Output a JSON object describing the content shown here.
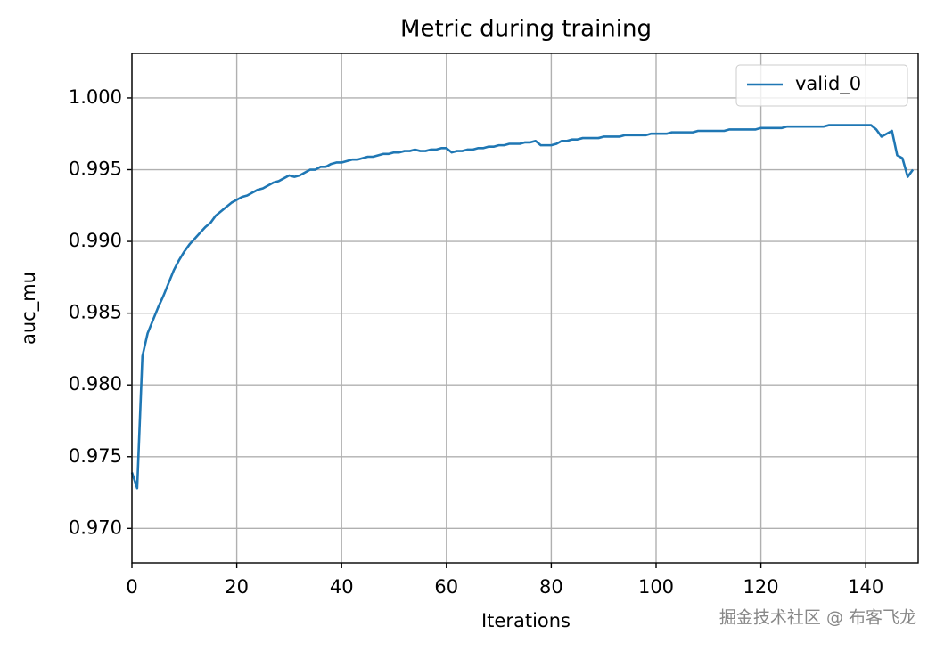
{
  "chart_data": {
    "type": "line",
    "title": "Metric during training",
    "xlabel": "Iterations",
    "ylabel": "auc_mu",
    "x": [
      0,
      1,
      2,
      3,
      4,
      5,
      6,
      7,
      8,
      9,
      10,
      11,
      12,
      13,
      14,
      15,
      16,
      17,
      18,
      19,
      20,
      21,
      22,
      23,
      24,
      25,
      26,
      27,
      28,
      29,
      30,
      31,
      32,
      33,
      34,
      35,
      36,
      37,
      38,
      39,
      40,
      41,
      42,
      43,
      44,
      45,
      46,
      47,
      48,
      49,
      50,
      51,
      52,
      53,
      54,
      55,
      56,
      57,
      58,
      59,
      60,
      61,
      62,
      63,
      64,
      65,
      66,
      67,
      68,
      69,
      70,
      71,
      72,
      73,
      74,
      75,
      76,
      77,
      78,
      79,
      80,
      81,
      82,
      83,
      84,
      85,
      86,
      87,
      88,
      89,
      90,
      91,
      92,
      93,
      94,
      95,
      96,
      97,
      98,
      99,
      100,
      101,
      102,
      103,
      104,
      105,
      106,
      107,
      108,
      109,
      110,
      111,
      112,
      113,
      114,
      115,
      116,
      117,
      118,
      119,
      120,
      121,
      122,
      123,
      124,
      125,
      126,
      127,
      128,
      129,
      130,
      131,
      132,
      133,
      134,
      135,
      136,
      137,
      138,
      139,
      140,
      141,
      142,
      143,
      144,
      145,
      146,
      147,
      148,
      149
    ],
    "series": [
      {
        "name": "valid_0",
        "color": "#1f77b4",
        "values": [
          0.9739,
          0.9728,
          0.982,
          0.9836,
          0.9845,
          0.9854,
          0.9862,
          0.9871,
          0.988,
          0.9887,
          0.9893,
          0.9898,
          0.9902,
          0.9906,
          0.991,
          0.9913,
          0.9918,
          0.9921,
          0.9924,
          0.9927,
          0.9929,
          0.9931,
          0.9932,
          0.9934,
          0.9936,
          0.9937,
          0.9939,
          0.9941,
          0.9942,
          0.9944,
          0.9946,
          0.9945,
          0.9946,
          0.9948,
          0.995,
          0.995,
          0.9952,
          0.9952,
          0.9954,
          0.9955,
          0.9955,
          0.9956,
          0.9957,
          0.9957,
          0.9958,
          0.9959,
          0.9959,
          0.996,
          0.9961,
          0.9961,
          0.9962,
          0.9962,
          0.9963,
          0.9963,
          0.9964,
          0.9963,
          0.9963,
          0.9964,
          0.9964,
          0.9965,
          0.9965,
          0.9962,
          0.9963,
          0.9963,
          0.9964,
          0.9964,
          0.9965,
          0.9965,
          0.9966,
          0.9966,
          0.9967,
          0.9967,
          0.9968,
          0.9968,
          0.9968,
          0.9969,
          0.9969,
          0.997,
          0.9967,
          0.9967,
          0.9967,
          0.9968,
          0.997,
          0.997,
          0.9971,
          0.9971,
          0.9972,
          0.9972,
          0.9972,
          0.9972,
          0.9973,
          0.9973,
          0.9973,
          0.9973,
          0.9974,
          0.9974,
          0.9974,
          0.9974,
          0.9974,
          0.9975,
          0.9975,
          0.9975,
          0.9975,
          0.9976,
          0.9976,
          0.9976,
          0.9976,
          0.9976,
          0.9977,
          0.9977,
          0.9977,
          0.9977,
          0.9977,
          0.9977,
          0.9978,
          0.9978,
          0.9978,
          0.9978,
          0.9978,
          0.9978,
          0.9979,
          0.9979,
          0.9979,
          0.9979,
          0.9979,
          0.998,
          0.998,
          0.998,
          0.998,
          0.998,
          0.998,
          0.998,
          0.998,
          0.9981,
          0.9981,
          0.9981,
          0.9981,
          0.9981,
          0.9981,
          0.9981,
          0.9981,
          0.9981,
          0.9978,
          0.9973,
          0.9975,
          0.9977,
          0.996,
          0.9958,
          0.9945,
          0.995
        ]
      }
    ],
    "xlim": [
      0,
      150
    ],
    "xticks": [
      0,
      20,
      40,
      60,
      80,
      100,
      120,
      140
    ],
    "ylim": [
      0.9676,
      1.0031
    ],
    "yticks": [
      {
        "value": 0.97,
        "label": "0.970"
      },
      0.975,
      {
        "value": 0.98,
        "label": "0.980"
      },
      0.985,
      {
        "value": 0.99,
        "label": "0.990"
      },
      0.995,
      {
        "value": 1.0,
        "label": "1.000"
      }
    ],
    "grid": true,
    "legend": "upper right",
    "watermark": "掘金技术社区 @ 布客飞龙"
  }
}
